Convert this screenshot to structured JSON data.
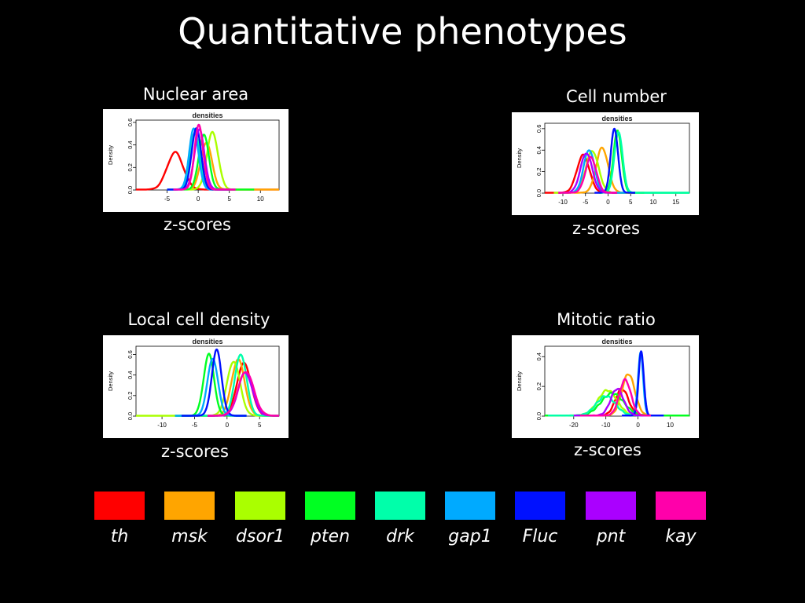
{
  "title": "Quantitative phenotypes",
  "genes": [
    {
      "name": "th",
      "color": "#ff0000"
    },
    {
      "name": "msk",
      "color": "#ffa500"
    },
    {
      "name": "dsor1",
      "color": "#aaff00"
    },
    {
      "name": "pten",
      "color": "#00ff22"
    },
    {
      "name": "drk",
      "color": "#00ffaa"
    },
    {
      "name": "gap1",
      "color": "#00aaff"
    },
    {
      "name": "Fluc",
      "color": "#0011ff"
    },
    {
      "name": "pnt",
      "color": "#aa00ff"
    },
    {
      "name": "kay",
      "color": "#ff00aa"
    }
  ],
  "chart_data": [
    {
      "type": "line",
      "panel_title": "Nuclear area",
      "plot_title": "densities",
      "xlabel": "z-scores",
      "ylabel": "Density",
      "xlim": [
        -10,
        13
      ],
      "ylim": [
        0,
        0.62
      ],
      "xticks": [
        -5,
        0,
        5,
        10
      ],
      "yticks": [
        0.0,
        0.2,
        0.4,
        0.6
      ],
      "series": [
        {
          "color": "#ff0000",
          "mu": -3.7,
          "sigma": 1.3,
          "peak": 0.33,
          "tail": [
            -10,
            13
          ]
        },
        {
          "color": "#ffa500",
          "mu": 1.3,
          "sigma": 0.9,
          "peak": 0.42,
          "tail": [
            -2,
            13
          ]
        },
        {
          "color": "#aaff00",
          "mu": 2.3,
          "sigma": 0.9,
          "peak": 0.51,
          "tail": [
            -2,
            9
          ]
        },
        {
          "color": "#00ff22",
          "mu": 0.9,
          "sigma": 0.8,
          "peak": 0.49,
          "tail": [
            -3,
            9
          ]
        },
        {
          "color": "#00ffaa",
          "mu": -0.5,
          "sigma": 0.8,
          "peak": 0.5,
          "tail": [
            -5,
            6
          ]
        },
        {
          "color": "#00aaff",
          "mu": -0.7,
          "sigma": 0.75,
          "peak": 0.54,
          "tail": [
            -5,
            5
          ]
        },
        {
          "color": "#0011ff",
          "mu": -0.3,
          "sigma": 0.75,
          "peak": 0.55,
          "tail": [
            -5,
            5
          ]
        },
        {
          "color": "#aa00ff",
          "mu": 0.2,
          "sigma": 0.8,
          "peak": 0.53,
          "tail": [
            -4,
            6
          ]
        },
        {
          "color": "#ff00aa",
          "mu": 0.1,
          "sigma": 0.7,
          "peak": 0.57,
          "tail": [
            -4,
            6
          ]
        }
      ]
    },
    {
      "type": "line",
      "panel_title": "Cell number",
      "plot_title": "densities",
      "xlabel": "z-scores",
      "ylabel": "Density",
      "xlim": [
        -14,
        18
      ],
      "ylim": [
        0,
        0.65
      ],
      "xticks": [
        -10,
        -5,
        0,
        5,
        10,
        15
      ],
      "yticks": [
        0.0,
        0.2,
        0.4,
        0.6
      ],
      "series": [
        {
          "color": "#ff0000",
          "mu": -5.5,
          "sigma": 1.4,
          "peak": 0.35,
          "tail": [
            -14,
            6
          ]
        },
        {
          "color": "#ffa500",
          "mu": -1.3,
          "sigma": 1.3,
          "peak": 0.42,
          "tail": [
            -9,
            8
          ]
        },
        {
          "color": "#aaff00",
          "mu": -3.5,
          "sigma": 1.4,
          "peak": 0.39,
          "tail": [
            -12,
            8
          ]
        },
        {
          "color": "#00ff22",
          "mu": 2.1,
          "sigma": 0.9,
          "peak": 0.58,
          "tail": [
            -2,
            18
          ]
        },
        {
          "color": "#00ffaa",
          "mu": 2.3,
          "sigma": 0.9,
          "peak": 0.57,
          "tail": [
            -2,
            18
          ]
        },
        {
          "color": "#00aaff",
          "mu": -4.2,
          "sigma": 1.2,
          "peak": 0.4,
          "tail": [
            -10,
            4
          ]
        },
        {
          "color": "#0011ff",
          "mu": 1.4,
          "sigma": 0.8,
          "peak": 0.6,
          "tail": [
            -3,
            6
          ]
        },
        {
          "color": "#aa00ff",
          "mu": -4.8,
          "sigma": 1.3,
          "peak": 0.37,
          "tail": [
            -11,
            2
          ]
        },
        {
          "color": "#ff00aa",
          "mu": -3.8,
          "sigma": 1.2,
          "peak": 0.33,
          "tail": [
            -11,
            2
          ]
        }
      ]
    },
    {
      "type": "line",
      "panel_title": "Local cell density",
      "plot_title": "densities",
      "xlabel": "z-scores",
      "ylabel": "Density",
      "xlim": [
        -14,
        8
      ],
      "ylim": [
        0,
        0.68
      ],
      "xticks": [
        -10,
        -5,
        0,
        5
      ],
      "yticks": [
        0.0,
        0.2,
        0.4,
        0.6
      ],
      "series": [
        {
          "color": "#ff0000",
          "mu": 2.6,
          "sigma": 1.1,
          "peak": 0.51,
          "tail": [
            -4,
            8
          ]
        },
        {
          "color": "#ffa500",
          "mu": 1.7,
          "sigma": 1.0,
          "peak": 0.55,
          "tail": [
            -4,
            8
          ]
        },
        {
          "color": "#aaff00",
          "mu": 1.0,
          "sigma": 1.0,
          "peak": 0.53,
          "tail": [
            -14,
            8
          ]
        },
        {
          "color": "#00ff22",
          "mu": -2.8,
          "sigma": 0.8,
          "peak": 0.6,
          "tail": [
            -8,
            3
          ]
        },
        {
          "color": "#00ffaa",
          "mu": 2.1,
          "sigma": 0.9,
          "peak": 0.6,
          "tail": [
            -4,
            8
          ]
        },
        {
          "color": "#00aaff",
          "mu": -2.2,
          "sigma": 0.8,
          "peak": 0.56,
          "tail": [
            -8,
            3
          ]
        },
        {
          "color": "#0011ff",
          "mu": -1.6,
          "sigma": 0.75,
          "peak": 0.64,
          "tail": [
            -7,
            3
          ]
        },
        {
          "color": "#aa00ff",
          "mu": 2.8,
          "sigma": 1.1,
          "peak": 0.42,
          "tail": [
            -3,
            8
          ]
        },
        {
          "color": "#ff00aa",
          "mu": 2.9,
          "sigma": 1.2,
          "peak": 0.43,
          "tail": [
            -3,
            8
          ]
        }
      ]
    },
    {
      "type": "line",
      "panel_title": "Mitotic ratio",
      "plot_title": "densities",
      "xlabel": "z-scores",
      "ylabel": "Density",
      "xlim": [
        -29,
        16
      ],
      "ylim": [
        0,
        0.47
      ],
      "xticks": [
        -20,
        -10,
        0,
        10
      ],
      "yticks": [
        0.0,
        0.2,
        0.4
      ],
      "series": [
        {
          "color": "#ff0000",
          "mu": -5.0,
          "sigma": 2.0,
          "peak": 0.18,
          "tail": [
            -22,
            4
          ]
        },
        {
          "color": "#ffa500",
          "mu": -3.0,
          "sigma": 2.0,
          "peak": 0.28,
          "tail": [
            -20,
            4
          ]
        },
        {
          "color": "#aaff00",
          "mu": -9.5,
          "sigma": 3.0,
          "peak": 0.17,
          "tail": [
            -29,
            16
          ]
        },
        {
          "color": "#00ff22",
          "mu": -8.0,
          "sigma": 3.5,
          "peak": 0.15,
          "tail": [
            -29,
            16
          ]
        },
        {
          "color": "#00ffaa",
          "mu": -10.0,
          "sigma": 3.0,
          "peak": 0.13,
          "tail": [
            -28,
            2
          ]
        },
        {
          "color": "#00aaff",
          "mu": 0.8,
          "sigma": 0.8,
          "peak": 0.42,
          "tail": [
            -5,
            8
          ]
        },
        {
          "color": "#0011ff",
          "mu": 1.0,
          "sigma": 0.8,
          "peak": 0.43,
          "tail": [
            -5,
            8
          ]
        },
        {
          "color": "#aa00ff",
          "mu": -6.5,
          "sigma": 2.0,
          "peak": 0.18,
          "tail": [
            -20,
            4
          ]
        },
        {
          "color": "#ff00aa",
          "mu": -4.0,
          "sigma": 1.8,
          "peak": 0.24,
          "tail": [
            -18,
            4
          ]
        }
      ]
    }
  ]
}
